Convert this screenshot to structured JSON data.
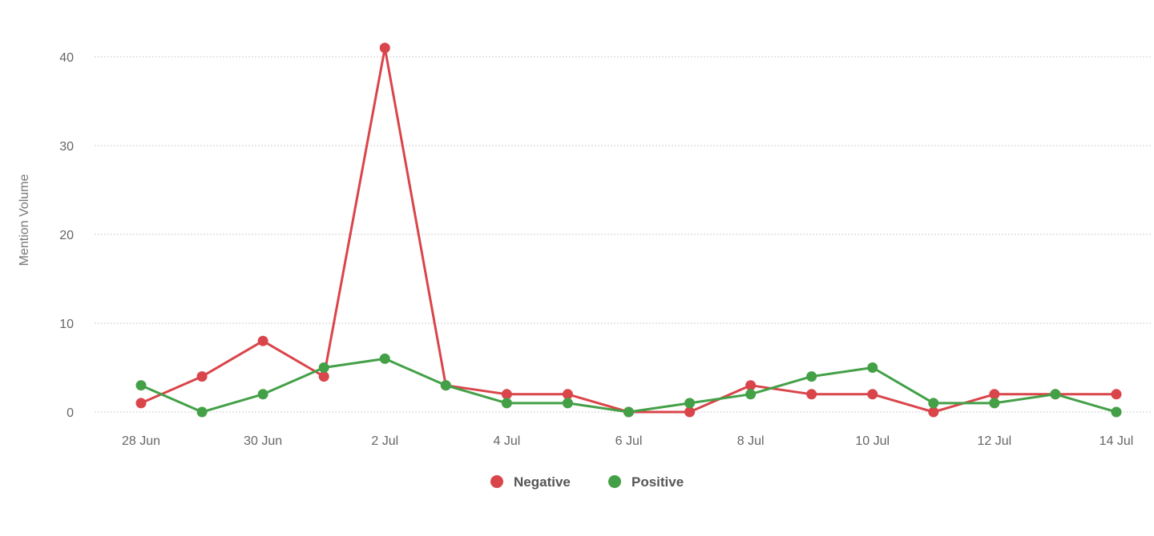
{
  "chart_data": {
    "type": "line",
    "ylabel": "Mention Volume",
    "xlabel": "",
    "ylim": [
      0,
      40
    ],
    "yticks": [
      0,
      10,
      20,
      30,
      40
    ],
    "grid": true,
    "legend_position": "bottom-center",
    "x": [
      "28 Jun",
      "29 Jun",
      "30 Jun",
      "1 Jul",
      "2 Jul",
      "3 Jul",
      "4 Jul",
      "5 Jul",
      "6 Jul",
      "7 Jul",
      "8 Jul",
      "9 Jul",
      "10 Jul",
      "11 Jul",
      "12 Jul",
      "13 Jul",
      "14 Jul"
    ],
    "xtick_labels": [
      "28 Jun",
      "30 Jun",
      "2 Jul",
      "4 Jul",
      "6 Jul",
      "8 Jul",
      "10 Jul",
      "12 Jul",
      "14 Jul"
    ],
    "series": [
      {
        "name": "Negative",
        "color": "#d9454a",
        "values": [
          1,
          4,
          8,
          4,
          41,
          3,
          2,
          2,
          0,
          0,
          3,
          2,
          2,
          0,
          2,
          2,
          2
        ]
      },
      {
        "name": "Positive",
        "color": "#43a047",
        "values": [
          3,
          0,
          2,
          5,
          6,
          3,
          1,
          1,
          0,
          1,
          2,
          4,
          5,
          1,
          1,
          2,
          0
        ]
      }
    ]
  }
}
